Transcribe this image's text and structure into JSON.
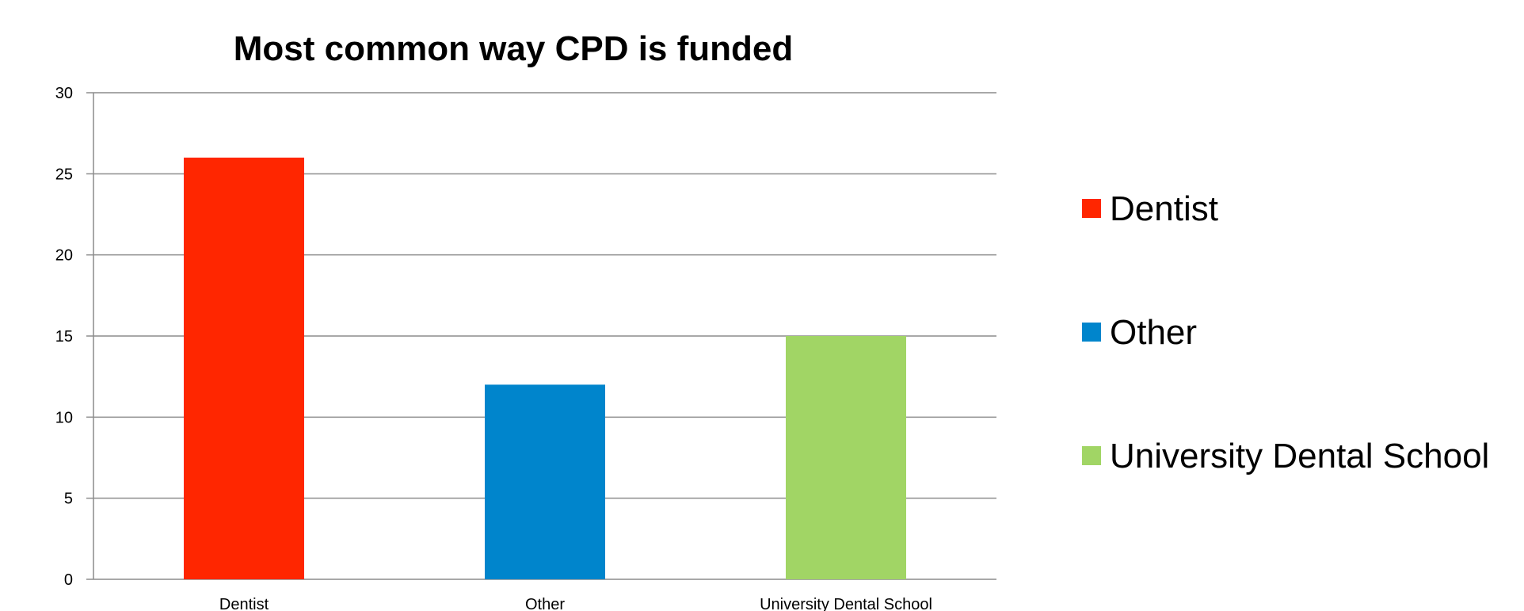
{
  "chart_data": {
    "type": "bar",
    "title": "Most common way CPD is funded",
    "xlabel": "",
    "ylabel": "",
    "categories": [
      "Dentist",
      "Other",
      "University Dental School"
    ],
    "series": [
      {
        "name": "Dentist",
        "values": [
          26,
          0,
          0
        ],
        "color": "#ff2600"
      },
      {
        "name": "Other",
        "values": [
          0,
          12,
          0
        ],
        "color": "#0085cc"
      },
      {
        "name": "University Dental School",
        "values": [
          0,
          0,
          15
        ],
        "color": "#a1d565"
      }
    ],
    "ylim": [
      0,
      30
    ],
    "yticks": [
      "0",
      "5",
      "10",
      "15",
      "20",
      "25",
      "30"
    ],
    "grid": true,
    "legend_position": "right"
  }
}
